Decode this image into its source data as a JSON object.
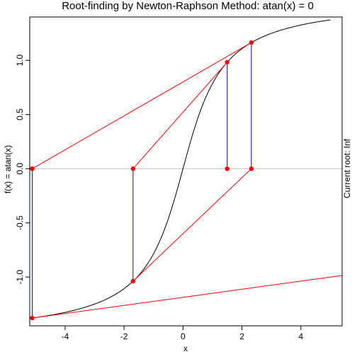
{
  "chart_data": {
    "type": "line",
    "title": "Root-finding by Newton-Raphson Method: atan(x) = 0",
    "xlabel": "x",
    "ylabel": "f(x) = atan(x)",
    "side_label": "Current root: Inf",
    "xlim": [
      -5.2,
      5.4
    ],
    "ylim": [
      -1.45,
      1.4
    ],
    "x_ticks": [
      -4,
      -2,
      0,
      2,
      4
    ],
    "y_ticks": [
      -1.0,
      -0.5,
      0.0,
      0.5,
      1.0
    ],
    "x_tick_labels": [
      "-4",
      "-2",
      "0",
      "2",
      "4"
    ],
    "y_tick_labels": [
      "-1.0",
      "-0.5",
      "0.0",
      "0.5",
      "1.0"
    ],
    "curve": {
      "function": "atan",
      "x_from": -5.2,
      "x_to": 5.0,
      "color": "#000000"
    },
    "reference_line": {
      "y": 0,
      "color": "#bebebe"
    },
    "iterates": [
      {
        "x": 1.5,
        "y": 0.983
      },
      {
        "x": -1.695,
        "y": -1.038
      },
      {
        "x": 2.32,
        "y": 1.164
      },
      {
        "x": -5.114,
        "y": -1.378
      }
    ],
    "tangent_segments": [
      {
        "x1": 1.5,
        "y1": 0.983,
        "x2": -1.695,
        "y2": 0.0
      },
      {
        "x1": -1.695,
        "y1": -1.038,
        "x2": 2.32,
        "y2": 0.0
      },
      {
        "x1": 2.32,
        "y1": 1.164,
        "x2": -5.114,
        "y2": 0.0
      },
      {
        "x1": -5.114,
        "y1": -1.378,
        "x2": 5.4,
        "y2": -0.985
      }
    ],
    "colors": {
      "point": "#ff0000",
      "tangent": "#ff0000",
      "vertical": "#0000ff",
      "curve": "#000000"
    }
  }
}
